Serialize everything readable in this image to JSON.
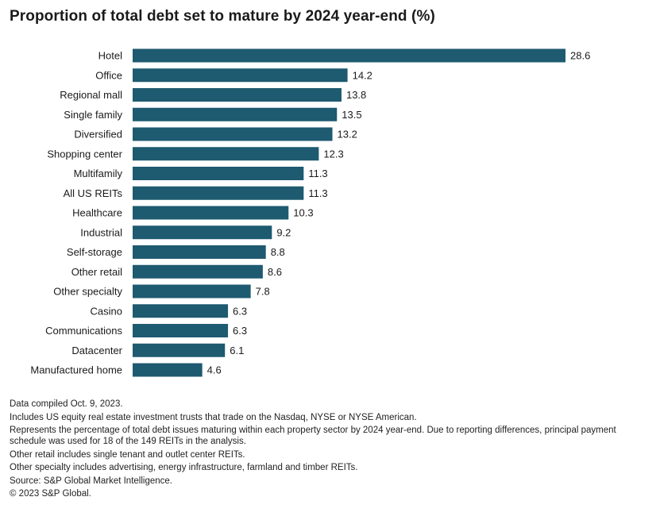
{
  "title": "Proportion of total debt set to mature by 2024 year-end (%)",
  "colors": {
    "bar": "#1e5a70",
    "text": "#1a1a1a"
  },
  "chart_data": {
    "type": "bar",
    "orientation": "horizontal",
    "title": "Proportion of total debt set to mature by 2024 year-end (%)",
    "categories": [
      "Hotel",
      "Office",
      "Regional mall",
      "Single family",
      "Diversified",
      "Shopping center",
      "Multifamily",
      "All US REITs",
      "Healthcare",
      "Industrial",
      "Self-storage",
      "Other retail",
      "Other specialty",
      "Casino",
      "Communications",
      "Datacenter",
      "Manufactured home"
    ],
    "values": [
      28.6,
      14.2,
      13.8,
      13.5,
      13.2,
      12.3,
      11.3,
      11.3,
      10.3,
      9.2,
      8.8,
      8.6,
      7.8,
      6.3,
      6.3,
      6.1,
      4.6
    ],
    "value_labels": [
      "28.6",
      "14.2",
      "13.8",
      "13.5",
      "13.2",
      "12.3",
      "11.3",
      "11.3",
      "10.3",
      "9.2",
      "8.8",
      "8.6",
      "7.8",
      "6.3",
      "6.3",
      "6.1",
      "4.6"
    ],
    "xlabel": "",
    "ylabel": "",
    "xlim": [
      0,
      28.6
    ],
    "grid": false,
    "legend": "none"
  },
  "notes": [
    "Data compiled Oct. 9, 2023.",
    "Includes US equity real estate investment trusts that trade on the Nasdaq, NYSE or NYSE American.",
    "Represents the percentage of total debt issues maturing within each property sector by 2024 year-end. Due to reporting differences, principal payment schedule was used for 18 of the 149 REITs in the analysis.",
    "Other retail includes single tenant and outlet center REITs.",
    "Other specialty includes advertising, energy infrastructure, farmland and timber REITs.",
    "Source: S&P Global Market Intelligence.",
    "© 2023 S&P Global."
  ]
}
